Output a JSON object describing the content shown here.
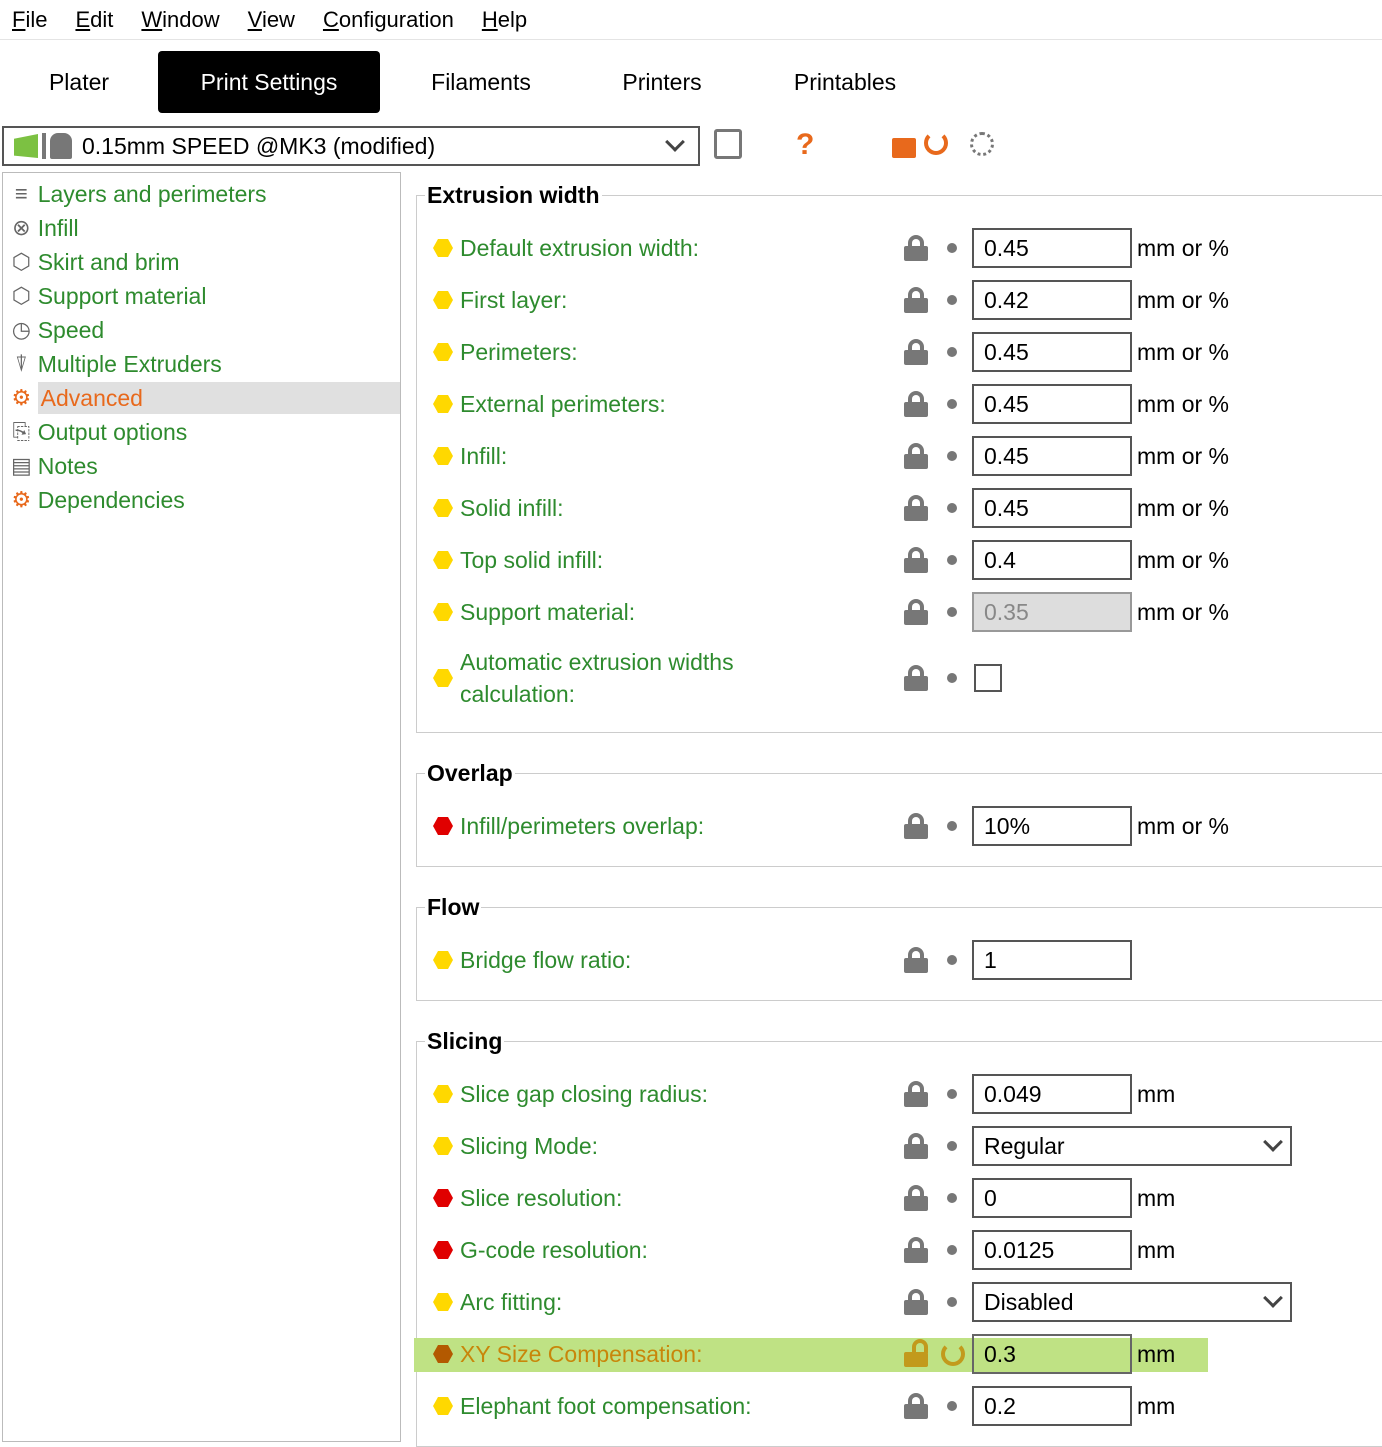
{
  "menu": [
    "File",
    "Edit",
    "Window",
    "View",
    "Configuration",
    "Help"
  ],
  "tabs": [
    {
      "label": "Plater",
      "active": false
    },
    {
      "label": "Print Settings",
      "active": true
    },
    {
      "label": "Filaments",
      "active": false
    },
    {
      "label": "Printers",
      "active": false
    },
    {
      "label": "Printables",
      "active": false
    }
  ],
  "preset": {
    "value": "0.15mm SPEED @MK3 (modified)"
  },
  "toolbar": {
    "icons": [
      "save-icon",
      "help-icon",
      "unlock-icon",
      "undo-icon",
      "search-icon"
    ],
    "help_glyph": "?"
  },
  "nav": [
    {
      "label": "Layers and perimeters",
      "icon": "layers-icon"
    },
    {
      "label": "Infill",
      "icon": "infill-icon"
    },
    {
      "label": "Skirt and brim",
      "icon": "skirt-icon"
    },
    {
      "label": "Support material",
      "icon": "support-icon"
    },
    {
      "label": "Speed",
      "icon": "speed-icon"
    },
    {
      "label": "Multiple Extruders",
      "icon": "extruders-icon"
    },
    {
      "label": "Advanced",
      "icon": "advanced-icon",
      "selected": true
    },
    {
      "label": "Output options",
      "icon": "output-icon"
    },
    {
      "label": "Notes",
      "icon": "notes-icon"
    },
    {
      "label": "Dependencies",
      "icon": "dependencies-icon"
    }
  ],
  "colors": {
    "simple": "#ffd800",
    "expert": "#e00000",
    "advanced": "#b35900",
    "highlight": "#bfe284",
    "label": "#2e8b2e",
    "accent": "#e8691c"
  },
  "sections": [
    {
      "title": "Extrusion width",
      "rows": [
        {
          "label": "Default extrusion width:",
          "value": "0.45",
          "unit": "mm or %",
          "level": "simple"
        },
        {
          "label": "First layer:",
          "value": "0.42",
          "unit": "mm or %",
          "level": "simple"
        },
        {
          "label": "Perimeters:",
          "value": "0.45",
          "unit": "mm or %",
          "level": "simple"
        },
        {
          "label": "External perimeters:",
          "value": "0.45",
          "unit": "mm or %",
          "level": "simple"
        },
        {
          "label": "Infill:",
          "value": "0.45",
          "unit": "mm or %",
          "level": "simple"
        },
        {
          "label": "Solid infill:",
          "value": "0.45",
          "unit": "mm or %",
          "level": "simple"
        },
        {
          "label": "Top solid infill:",
          "value": "0.4",
          "unit": "mm or %",
          "level": "simple"
        },
        {
          "label": "Support material:",
          "value": "0.35",
          "unit": "mm or %",
          "level": "simple",
          "disabled": true
        },
        {
          "label": "Automatic extrusion widths calculation:",
          "type": "checkbox",
          "checked": false,
          "level": "simple"
        }
      ]
    },
    {
      "title": "Overlap",
      "rows": [
        {
          "label": "Infill/perimeters overlap:",
          "value": "10%",
          "unit": "mm or %",
          "level": "expert"
        }
      ]
    },
    {
      "title": "Flow",
      "rows": [
        {
          "label": "Bridge flow ratio:",
          "value": "1",
          "unit": "",
          "level": "simple"
        }
      ]
    },
    {
      "title": "Slicing",
      "rows": [
        {
          "label": "Slice gap closing radius:",
          "value": "0.049",
          "unit": "mm",
          "level": "simple"
        },
        {
          "label": "Slicing Mode:",
          "value": "Regular",
          "type": "select",
          "level": "simple"
        },
        {
          "label": "Slice resolution:",
          "value": "0",
          "unit": "mm",
          "level": "expert"
        },
        {
          "label": "G-code resolution:",
          "value": "0.0125",
          "unit": "mm",
          "level": "expert"
        },
        {
          "label": "Arc fitting:",
          "value": "Disabled",
          "type": "select",
          "level": "simple"
        },
        {
          "label": "XY Size Compensation:",
          "value": "0.3",
          "unit": "mm",
          "level": "advanced",
          "modified": true,
          "highlighted": true
        },
        {
          "label": "Elephant foot compensation:",
          "value": "0.2",
          "unit": "mm",
          "level": "simple"
        }
      ]
    }
  ]
}
